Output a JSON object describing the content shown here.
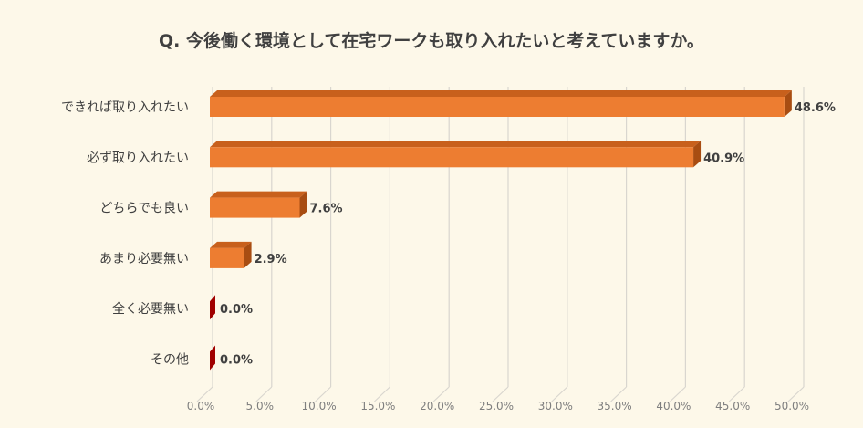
{
  "chart_data": {
    "type": "bar",
    "orientation": "horizontal",
    "title": "Q. 今後働く環境として在宅ワークも取り入れたいと考えていますか。",
    "categories": [
      "できれば取り入れたい",
      "必ず取り入れたい",
      "どちらでも良い",
      "あまり必要無い",
      "全く必要無い",
      "その他"
    ],
    "values": [
      48.6,
      40.9,
      7.6,
      2.9,
      0.0,
      0.0
    ],
    "data_labels": [
      "48.6%",
      "40.9%",
      "7.6%",
      "2.9%",
      "0.0%",
      "0.0%"
    ],
    "xlim": [
      0,
      50
    ],
    "xticks": [
      "0.0%",
      "5.0%",
      "10.0%",
      "15.0%",
      "20.0%",
      "25.0%",
      "30.0%",
      "35.0%",
      "40.0%",
      "45.0%",
      "50.0%"
    ],
    "grid": true,
    "xlabel": "",
    "ylabel": "",
    "colors": {
      "bar": "#ed7d31",
      "bar_top": "#c8601c",
      "bar_side": "#a84d12",
      "zero_bar": "#a00000",
      "background": "#fdf8e9"
    }
  }
}
